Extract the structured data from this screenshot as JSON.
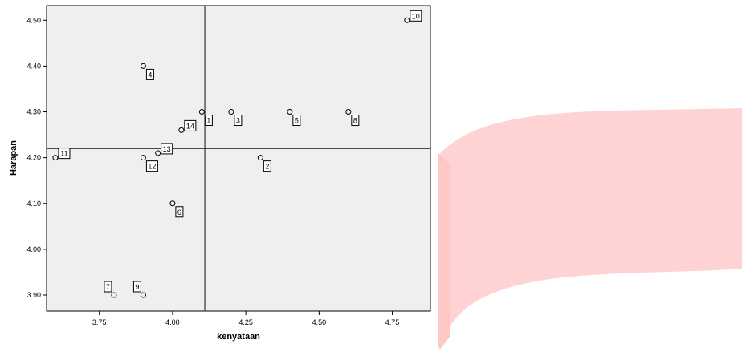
{
  "chart_data": {
    "type": "scatter",
    "xlabel": "kenyataan",
    "ylabel": "Harapan",
    "xlim": [
      3.57,
      4.88
    ],
    "ylim": [
      3.865,
      4.532
    ],
    "xticks": [
      "3.75",
      "4.00",
      "4.25",
      "4.50",
      "4.75"
    ],
    "yticks": [
      "3.90",
      "4.00",
      "4.10",
      "4.20",
      "4.30",
      "4.40",
      "4.50"
    ],
    "grid": false,
    "reference_lines": {
      "x": 4.11,
      "y": 4.22
    },
    "points": [
      {
        "label": "1",
        "x": 4.1,
        "y": 4.3
      },
      {
        "label": "2",
        "x": 4.3,
        "y": 4.2
      },
      {
        "label": "3",
        "x": 4.2,
        "y": 4.3
      },
      {
        "label": "4",
        "x": 3.9,
        "y": 4.4
      },
      {
        "label": "5",
        "x": 4.4,
        "y": 4.3
      },
      {
        "label": "6",
        "x": 4.0,
        "y": 4.1
      },
      {
        "label": "7",
        "x": 3.8,
        "y": 3.9
      },
      {
        "label": "8",
        "x": 4.6,
        "y": 4.3
      },
      {
        "label": "9",
        "x": 3.9,
        "y": 3.9
      },
      {
        "label": "10",
        "x": 4.8,
        "y": 4.5
      },
      {
        "label": "11",
        "x": 3.6,
        "y": 4.2
      },
      {
        "label": "12",
        "x": 3.9,
        "y": 4.2
      },
      {
        "label": "13",
        "x": 3.95,
        "y": 4.21
      },
      {
        "label": "14",
        "x": 4.03,
        "y": 4.26
      }
    ]
  },
  "colors": {
    "plot_background": "#efefef",
    "marker_stroke": "#000000",
    "ribbon": "#ffd3d3"
  }
}
